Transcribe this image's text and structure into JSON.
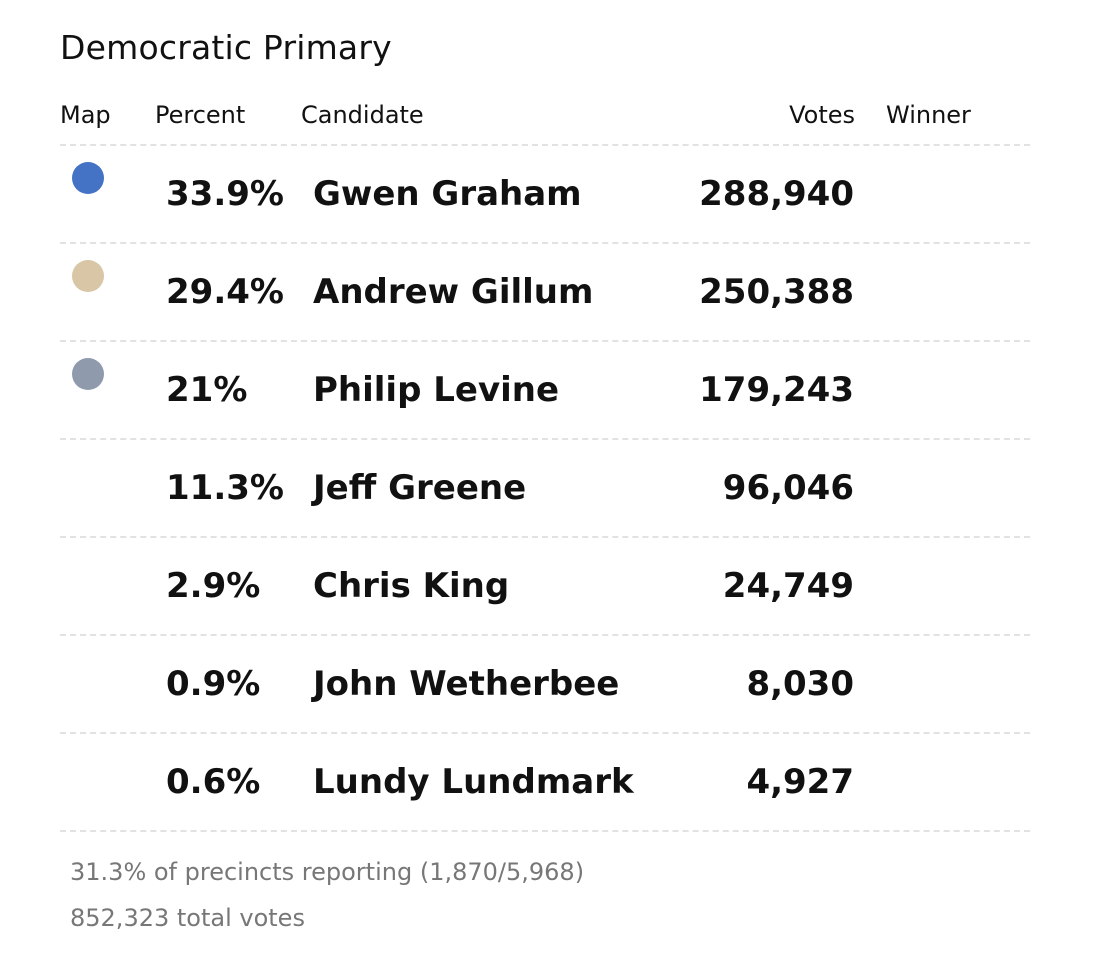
{
  "title": "Democratic Primary",
  "columns": {
    "map": "Map",
    "percent": "Percent",
    "candidate": "Candidate",
    "votes": "Votes",
    "winner": "Winner"
  },
  "rows": [
    {
      "percent": "33.9%",
      "candidate": "Gwen Graham",
      "votes": "288,940",
      "map_color": "#4472c4"
    },
    {
      "percent": "29.4%",
      "candidate": "Andrew Gillum",
      "votes": "250,388",
      "map_color": "#d8c6a6"
    },
    {
      "percent": "21%",
      "candidate": "Philip Levine",
      "votes": "179,243",
      "map_color": "#8f9bad"
    },
    {
      "percent": "11.3%",
      "candidate": "Jeff Greene",
      "votes": "96,046",
      "map_color": ""
    },
    {
      "percent": "2.9%",
      "candidate": "Chris King",
      "votes": "24,749",
      "map_color": ""
    },
    {
      "percent": "0.9%",
      "candidate": "John Wetherbee",
      "votes": "8,030",
      "map_color": ""
    },
    {
      "percent": "0.6%",
      "candidate": "Lundy Lundmark",
      "votes": "4,927",
      "map_color": ""
    }
  ],
  "footer": {
    "precincts": "31.3% of precincts reporting (1,870/5,968)",
    "total": "852,323 total votes"
  }
}
